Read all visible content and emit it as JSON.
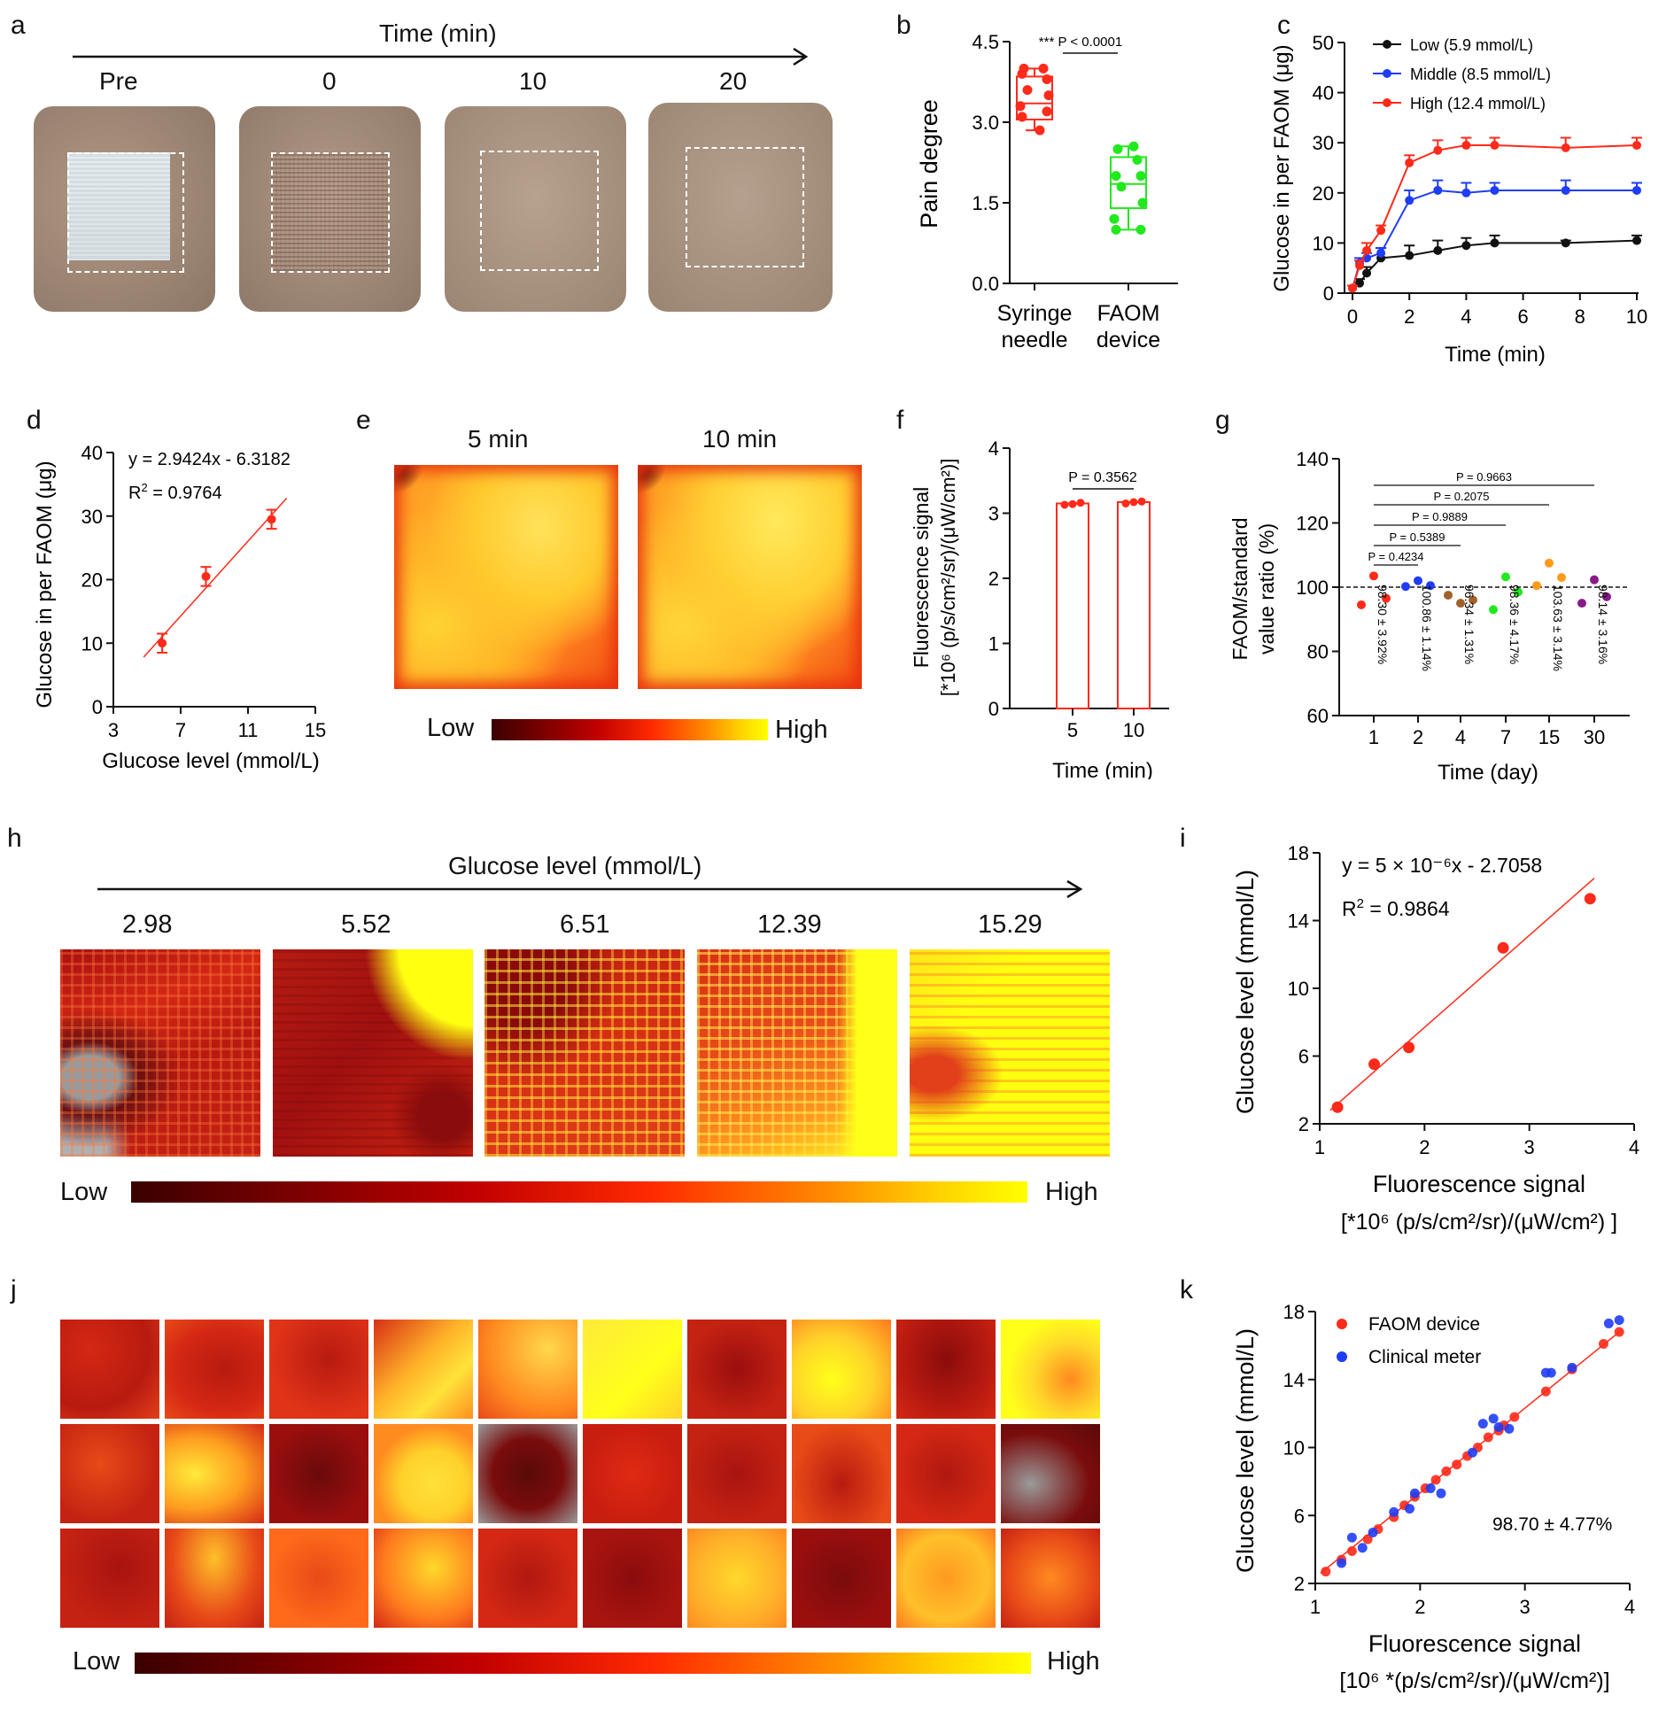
{
  "panels": {
    "a": {
      "letter": "a",
      "axis_label": "Time (min)",
      "timepoints": [
        "Pre",
        "0",
        "10",
        "20"
      ]
    },
    "e": {
      "letter": "e",
      "times": [
        "5 min",
        "10 min"
      ],
      "low": "Low",
      "high": "High"
    },
    "h": {
      "letter": "h",
      "axis_label": "Glucose level (mmol/L)",
      "levels": [
        "2.98",
        "5.52",
        "6.51",
        "12.39",
        "15.29"
      ],
      "low": "Low",
      "high": "High"
    },
    "j": {
      "letter": "j",
      "low": "Low",
      "high": "High"
    }
  },
  "chart_data": [
    {
      "panel": "b",
      "type": "box",
      "categories": [
        "Syringe needle",
        "FAOM device"
      ],
      "category_lines": [
        [
          "Syringe",
          "needle"
        ],
        [
          "FAOM",
          "device"
        ]
      ],
      "ylabel": "Pain degree",
      "ylim": [
        0,
        4.5
      ],
      "yticks": [
        "0.0",
        "1.5",
        "3.0",
        "4.5"
      ],
      "colors": [
        "#ff2a1a",
        "#22e81e"
      ],
      "annotation": "*** P < 0.0001",
      "points": [
        [
          3.1,
          3.2,
          3.3,
          3.5,
          3.6,
          3.8,
          3.9,
          4.0,
          4.0,
          2.85
        ],
        [
          1.0,
          1.0,
          1.2,
          1.5,
          1.8,
          2.0,
          2.0,
          2.3,
          2.5,
          2.55
        ]
      ],
      "boxes": [
        {
          "min": 2.85,
          "q1": 3.05,
          "median": 3.35,
          "q3": 3.85,
          "max": 4.0
        },
        {
          "min": 1.0,
          "q1": 1.4,
          "median": 1.85,
          "q3": 2.35,
          "max": 2.55
        }
      ]
    },
    {
      "panel": "c",
      "type": "line",
      "xlabel": "Time (min)",
      "ylabel": "Glucose in per FAOM (μg)",
      "xlim": [
        0,
        10
      ],
      "ylim": [
        0,
        50
      ],
      "xticks": [
        "0",
        "2",
        "4",
        "6",
        "8",
        "10"
      ],
      "yticks": [
        "0",
        "10",
        "20",
        "30",
        "40",
        "50"
      ],
      "legend_position": "top-left",
      "x": [
        0,
        0.25,
        0.5,
        1,
        2,
        3,
        4,
        5,
        7.5,
        10
      ],
      "series": [
        {
          "name": "Low (5.9 mmol/L)",
          "color": "#111111",
          "values": [
            1,
            2,
            4,
            7,
            7.5,
            8.5,
            9.5,
            10,
            10,
            10.5
          ],
          "errors": [
            0.5,
            0.8,
            1.2,
            2,
            2,
            2,
            1.5,
            1.5,
            0.5,
            1
          ]
        },
        {
          "name": "Middle (8.5 mmol/L)",
          "color": "#1f3df5",
          "values": [
            1,
            6,
            7,
            8,
            18.5,
            20.5,
            20,
            20.5,
            20.5,
            20.5
          ],
          "errors": [
            0.5,
            1,
            1,
            1,
            2,
            2,
            2,
            1.5,
            2,
            1.5
          ]
        },
        {
          "name": "High (12.4 mmol/L)",
          "color": "#ff2a1a",
          "values": [
            1,
            5.5,
            8.5,
            12.5,
            26,
            28.5,
            29.5,
            29.5,
            29,
            29.5
          ],
          "errors": [
            0.5,
            1,
            1.5,
            1,
            1.5,
            2,
            1.5,
            1.5,
            2,
            1.5
          ]
        }
      ]
    },
    {
      "panel": "d",
      "type": "scatter",
      "xlabel": "Glucose level (mmol/L)",
      "ylabel": "Glucose in per FAOM (μg)",
      "xlim": [
        3,
        15
      ],
      "ylim": [
        0,
        40
      ],
      "xticks": [
        "3",
        "7",
        "11",
        "15"
      ],
      "yticks": [
        "0",
        "10",
        "20",
        "30",
        "40"
      ],
      "x": [
        5.9,
        8.5,
        12.4
      ],
      "y": [
        10,
        20.5,
        29.5
      ],
      "errors": [
        1.5,
        1.5,
        1.5
      ],
      "fit_x": [
        4.8,
        13.3
      ],
      "equation": "y = 2.9424x - 6.3182",
      "r2_label": "R",
      "r2_value": " = 0.9764",
      "color": "#ff2a1a"
    },
    {
      "panel": "f",
      "type": "bar",
      "categories": [
        "5",
        "10"
      ],
      "values": [
        3.15,
        3.17
      ],
      "points": [
        [
          3.13,
          3.14,
          3.16
        ],
        [
          3.15,
          3.17,
          3.18
        ]
      ],
      "xlabel": "Time (min)",
      "ylabel_line1": "Fluorescence signal",
      "ylabel_line2": "[*10⁶ (p/s/cm²/sr)/(μW/cm²)]",
      "ylim": [
        0,
        4
      ],
      "yticks": [
        "0",
        "1",
        "2",
        "3",
        "4"
      ],
      "annotation": "P = 0.3562",
      "color": "#ff2a1a"
    },
    {
      "panel": "g",
      "type": "scatter",
      "categories": [
        "1",
        "2",
        "4",
        "7",
        "15",
        "30"
      ],
      "xlabel": "Time (day)",
      "ylabel_line1": "FAOM/standard",
      "ylabel_line2": "value ratio (%)",
      "ylim": [
        60,
        140
      ],
      "yticks": [
        "60",
        "80",
        "100",
        "120",
        "140"
      ],
      "reference_line": 100,
      "groups": [
        {
          "color": "#ff2a1a",
          "values": [
            94.5,
            103.5,
            96.5
          ],
          "label": "98.30 ± 3.92%"
        },
        {
          "color": "#1f3df5",
          "values": [
            100.2,
            102,
            100.5
          ],
          "label": "100.86 ± 1.14%"
        },
        {
          "color": "#a0622a",
          "values": [
            97.5,
            95,
            96
          ],
          "label": "96.34 ± 1.31%"
        },
        {
          "color": "#22e81e",
          "values": [
            93,
            103.2,
            98.5
          ],
          "label": "98.36 ± 4.17%"
        },
        {
          "color": "#ff9a1a",
          "values": [
            100.5,
            107.5,
            103
          ],
          "label": "103.63 ± 3.14%"
        },
        {
          "color": "#8a1a8a",
          "values": [
            95,
            102.3,
            97
          ],
          "label": "98.14 ± 3.16%"
        }
      ],
      "comparisons": [
        "P = 0.4234",
        "P = 0.5389",
        "P = 0.9889",
        "P = 0.2075",
        "P = 0.9663"
      ]
    },
    {
      "panel": "i",
      "type": "scatter",
      "xlabel": "Fluorescence signal",
      "xlabel_line2": "[*10⁶ (p/s/cm²/sr)/(μW/cm²) ]",
      "ylabel": "Glucose level (mmol/L)",
      "xlim": [
        1,
        4
      ],
      "ylim": [
        2,
        18
      ],
      "xticks": [
        "1",
        "2",
        "3",
        "4"
      ],
      "yticks": [
        "2",
        "6",
        "10",
        "14",
        "18"
      ],
      "x": [
        1.17,
        1.52,
        1.85,
        2.75,
        3.58
      ],
      "y": [
        2.98,
        5.52,
        6.51,
        12.39,
        15.29
      ],
      "fit_x": [
        1.1,
        3.62
      ],
      "fit_y": [
        2.8,
        16.5
      ],
      "equation": "y = 5 × 10⁻⁶x - 2.7058",
      "r2_label": "R",
      "r2_value": " = 0.9864",
      "color": "#ff2a1a"
    },
    {
      "panel": "k",
      "type": "scatter",
      "xlabel": "Fluorescence signal",
      "xlabel_line2": "[10⁶ *(p/s/cm²/sr)/(μW/cm²)]",
      "ylabel": "Glucose level (mmol/L)",
      "xlim": [
        1,
        4
      ],
      "ylim": [
        2,
        18
      ],
      "xticks": [
        "1",
        "2",
        "3",
        "4"
      ],
      "yticks": [
        "2",
        "6",
        "10",
        "14",
        "18"
      ],
      "annotation": "98.70 ± 4.77%",
      "legend_position": "top-left",
      "fit_x": [
        1.05,
        3.92
      ],
      "fit_y": [
        2.6,
        16.9
      ],
      "series": [
        {
          "name": "FAOM device",
          "color": "#ff2a1a",
          "x": [
            1.1,
            1.25,
            1.35,
            1.5,
            1.6,
            1.75,
            1.85,
            1.95,
            2.05,
            2.15,
            2.25,
            2.35,
            2.45,
            2.55,
            2.65,
            2.75,
            2.8,
            2.9,
            3.2,
            3.45,
            3.75,
            3.9
          ],
          "y": [
            2.7,
            3.4,
            3.9,
            4.6,
            5.2,
            5.9,
            6.6,
            7.1,
            7.6,
            8.1,
            8.6,
            9.0,
            9.5,
            10.0,
            10.6,
            11.0,
            11.3,
            11.8,
            13.3,
            14.6,
            16.1,
            16.8
          ]
        },
        {
          "name": "Clinical meter",
          "color": "#1f3df5",
          "x": [
            1.25,
            1.35,
            1.45,
            1.55,
            1.75,
            1.9,
            1.95,
            2.1,
            2.2,
            2.5,
            2.6,
            2.7,
            2.75,
            2.85,
            3.2,
            3.25,
            3.45,
            3.8,
            3.9
          ],
          "y": [
            3.2,
            4.7,
            4.1,
            5.0,
            6.2,
            6.4,
            7.3,
            7.6,
            7.3,
            9.7,
            11.4,
            11.7,
            11.2,
            11.1,
            14.4,
            14.4,
            14.7,
            17.3,
            17.5
          ]
        }
      ]
    }
  ]
}
